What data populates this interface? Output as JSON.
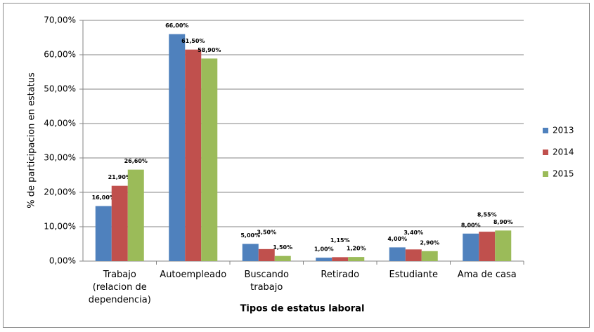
{
  "chart_data": {
    "type": "bar",
    "x_label": "Tipos de estatus laboral",
    "y_label": "% de participacion en estatus",
    "categories": [
      "Trabajo (relacion de dependencia)",
      "Autoempleado",
      "Buscando trabajo",
      "Retirado",
      "Estudiante",
      "Ama de casa"
    ],
    "series": [
      {
        "name": "2013",
        "color": "#4f81bd",
        "values": [
          16,
          66,
          5,
          1,
          4,
          8
        ],
        "value_labels": [
          "16,00%",
          "66,00%",
          "5,00%",
          "1,00%",
          "4,00%",
          "8,00%"
        ]
      },
      {
        "name": "2014",
        "color": "#c0504d",
        "values": [
          21.9,
          61.5,
          3.5,
          1.15,
          3.4,
          8.55
        ],
        "value_labels": [
          "21,90%",
          "61,50%",
          "3,50%",
          "1,15%",
          "3,40%",
          "8,55%"
        ]
      },
      {
        "name": "2015",
        "color": "#9bbb59",
        "values": [
          26.6,
          58.9,
          1.5,
          1.2,
          2.9,
          8.9
        ],
        "value_labels": [
          "26,60%",
          "58,90%",
          "1,50%",
          "1,20%",
          "2,90%",
          "8,90%"
        ]
      }
    ],
    "ylim": [
      0,
      70
    ],
    "yticks": [
      {
        "value": 0,
        "label": "0,00%"
      },
      {
        "value": 10,
        "label": "10,00%"
      },
      {
        "value": 20,
        "label": "20,00%"
      },
      {
        "value": 30,
        "label": "30,00%"
      },
      {
        "value": 40,
        "label": "40,00%"
      },
      {
        "value": 50,
        "label": "50,00%"
      },
      {
        "value": 60,
        "label": "60,00%"
      },
      {
        "value": 70,
        "label": "70,00%"
      }
    ],
    "grid": true,
    "legend": "right"
  }
}
